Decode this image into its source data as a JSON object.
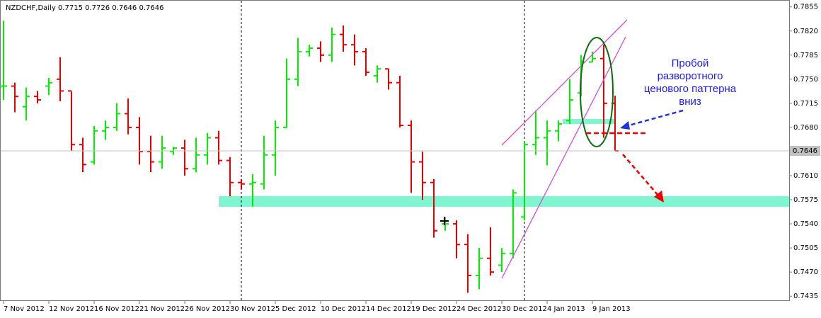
{
  "chart_data": {
    "type": "ohlc",
    "title": "NZDCHF,Daily  0.7715 0.7726 0.7646 0.7646",
    "categories": [
      "7 Nov 2012",
      null,
      null,
      null,
      "12 Nov 2012",
      null,
      null,
      null,
      "16 Nov 2012",
      null,
      null,
      null,
      "21 Nov 2012",
      null,
      null,
      null,
      "26 Nov 2012",
      null,
      null,
      null,
      "30 Nov 2012",
      null,
      null,
      null,
      "5 Dec 2012",
      null,
      null,
      null,
      "10 Dec 2012",
      null,
      null,
      null,
      "14 Dec 2012",
      null,
      null,
      null,
      "19 Dec 2012",
      null,
      null,
      null,
      "24 Dec 2012",
      null,
      null,
      null,
      "30 Dec 2012",
      null,
      null,
      null,
      "4 Jan 2013",
      null,
      null,
      null,
      "9 Jan 2013",
      null,
      null
    ],
    "open": [
      0.774,
      0.774,
      0.771,
      0.7725,
      0.774,
      0.775,
      0.7733,
      0.7655,
      0.763,
      0.7675,
      0.768,
      0.77,
      0.768,
      0.7645,
      0.763,
      0.7645,
      0.765,
      0.762,
      0.764,
      0.7665,
      0.7632,
      0.76,
      0.7598,
      0.7598,
      0.764,
      0.768,
      0.775,
      0.779,
      0.7795,
      0.7785,
      0.7815,
      0.78,
      0.779,
      0.7755,
      0.7765,
      0.7745,
      0.7683,
      0.763,
      0.76,
      0.754,
      0.754,
      0.751,
      0.7465,
      0.749,
      0.748,
      0.7497,
      0.755,
      0.7655,
      0.7665,
      0.7675,
      0.769,
      0.773,
      0.7775,
      0.778,
      0.7715
    ],
    "high": [
      0.7835,
      0.7745,
      0.7738,
      0.7733,
      0.7752,
      0.7782,
      0.7732,
      0.7665,
      0.7682,
      0.769,
      0.7715,
      0.7722,
      0.7695,
      0.7668,
      0.7668,
      0.7652,
      0.7662,
      0.7665,
      0.7672,
      0.7675,
      0.7637,
      0.7605,
      0.7612,
      0.7668,
      0.769,
      0.778,
      0.781,
      0.78,
      0.7805,
      0.7825,
      0.7828,
      0.7815,
      0.7795,
      0.777,
      0.7765,
      0.7755,
      0.769,
      0.7645,
      0.7605,
      0.755,
      0.7545,
      0.7525,
      0.7505,
      0.7535,
      0.7505,
      0.759,
      0.766,
      0.7705,
      0.769,
      0.769,
      0.775,
      0.7785,
      0.779,
      0.78,
      0.7726
    ],
    "low": [
      0.772,
      0.7702,
      0.769,
      0.7715,
      0.7727,
      0.7718,
      0.7646,
      0.7615,
      0.7626,
      0.7662,
      0.7675,
      0.767,
      0.7626,
      0.7615,
      0.762,
      0.764,
      0.761,
      0.7615,
      0.7626,
      0.7626,
      0.758,
      0.759,
      0.7565,
      0.759,
      0.761,
      0.768,
      0.774,
      0.7783,
      0.7775,
      0.7775,
      0.779,
      0.777,
      0.7755,
      0.7745,
      0.7735,
      0.768,
      0.7585,
      0.7575,
      0.752,
      0.753,
      0.749,
      0.744,
      0.7445,
      0.7465,
      0.747,
      0.749,
      0.7545,
      0.764,
      0.7625,
      0.766,
      0.7685,
      0.7725,
      0.7775,
      0.7665,
      0.7646
    ],
    "close": [
      0.774,
      0.7725,
      0.7725,
      0.772,
      0.7745,
      0.7733,
      0.7655,
      0.7626,
      0.7675,
      0.768,
      0.77,
      0.768,
      0.7645,
      0.763,
      0.765,
      0.765,
      0.762,
      0.764,
      0.7665,
      0.7632,
      0.76,
      0.7598,
      0.76,
      0.764,
      0.768,
      0.775,
      0.779,
      0.7795,
      0.7785,
      0.7815,
      0.78,
      0.779,
      0.776,
      0.7765,
      0.7745,
      0.7683,
      0.763,
      0.76,
      0.753,
      0.754,
      0.751,
      0.7465,
      0.749,
      0.747,
      0.7497,
      0.7585,
      0.7655,
      0.7665,
      0.7675,
      0.7685,
      0.772,
      0.7775,
      0.778,
      0.7715,
      0.7646
    ],
    "up_color": "#00ee00",
    "down_color": "#e80000",
    "ylim": [
      0.7428,
      0.7865
    ],
    "yticks": [
      0.7855,
      {
        "value": 0.782,
        "label": "0.7820"
      },
      0.7785,
      {
        "value": 0.775,
        "label": "0.7750"
      },
      0.7715,
      {
        "value": 0.768,
        "label": "0.7680"
      },
      {
        "value": 0.761,
        "label": "0.7610"
      },
      0.7575,
      {
        "value": 0.754,
        "label": "0.7540"
      },
      0.7505,
      {
        "value": 0.747,
        "label": "0.7470"
      },
      0.7435
    ],
    "current_price": 0.7646,
    "annotation": [
      "Пробой",
      "разворотного",
      "ценового паттерна",
      "вниз"
    ]
  }
}
